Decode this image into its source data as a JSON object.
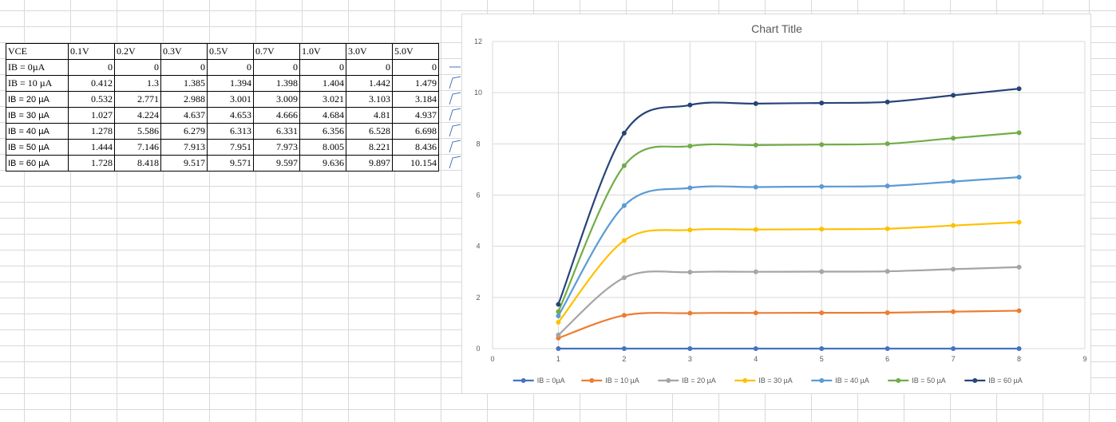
{
  "table": {
    "header": [
      "VCE",
      "0.1V",
      "0.2V",
      "0.3V",
      "0.5V",
      "0.7V",
      "1.0V",
      "3.0V",
      "5.0V"
    ],
    "rows": [
      {
        "label": "IB = 0µA",
        "values": [
          "0",
          "0",
          "0",
          "0",
          "0",
          "0",
          "0",
          "0"
        ]
      },
      {
        "label": "IB = 10 µA",
        "values": [
          "0.412",
          "1.3",
          "1.385",
          "1.394",
          "1.398",
          "1.404",
          "1.442",
          "1.479"
        ]
      },
      {
        "label": "IB = 20 µA",
        "values": [
          "0.532",
          "2.771",
          "2.988",
          "3.001",
          "3.009",
          "3.021",
          "3.103",
          "3.184"
        ]
      },
      {
        "label": "IB = 30 µA",
        "values": [
          "1.027",
          "4.224",
          "4.637",
          "4.653",
          "4.666",
          "4.684",
          "4.81",
          "4.937"
        ]
      },
      {
        "label": "IB = 40 µA",
        "values": [
          "1.278",
          "5.586",
          "6.279",
          "6.313",
          "6.331",
          "6.356",
          "6.528",
          "6.698"
        ]
      },
      {
        "label": "IB = 50 µA",
        "values": [
          "1.444",
          "7.146",
          "7.913",
          "7.951",
          "7.973",
          "8.005",
          "8.221",
          "8.436"
        ]
      },
      {
        "label": "IB = 60 µA",
        "values": [
          "1.728",
          "8.418",
          "9.517",
          "9.571",
          "9.597",
          "9.636",
          "9.897",
          "10.154"
        ]
      }
    ]
  },
  "chart_data": {
    "type": "line",
    "title": "Chart Title",
    "xlabel": "",
    "ylabel": "",
    "x": [
      1,
      2,
      3,
      4,
      5,
      6,
      7,
      8
    ],
    "xlim": [
      0,
      9
    ],
    "ylim": [
      0,
      12
    ],
    "x_ticks": [
      "0",
      "1",
      "2",
      "3",
      "4",
      "5",
      "6",
      "7",
      "8",
      "9"
    ],
    "y_ticks": [
      "0",
      "2",
      "4",
      "6",
      "8",
      "10",
      "12"
    ],
    "grid": true,
    "smooth": true,
    "legend_position": "bottom",
    "series": [
      {
        "name": "IB = 0µA",
        "color": "#4472C4",
        "values": [
          0,
          0,
          0,
          0,
          0,
          0,
          0,
          0
        ]
      },
      {
        "name": "IB = 10 µA",
        "color": "#ED7D31",
        "values": [
          0.412,
          1.3,
          1.385,
          1.394,
          1.398,
          1.404,
          1.442,
          1.479
        ]
      },
      {
        "name": "IB = 20 µA",
        "color": "#A5A5A5",
        "values": [
          0.532,
          2.771,
          2.988,
          3.001,
          3.009,
          3.021,
          3.103,
          3.184
        ]
      },
      {
        "name": "IB = 30 µA",
        "color": "#FFC000",
        "values": [
          1.027,
          4.224,
          4.637,
          4.653,
          4.666,
          4.684,
          4.81,
          4.937
        ]
      },
      {
        "name": "IB = 40 µA",
        "color": "#5B9BD5",
        "values": [
          1.278,
          5.586,
          6.279,
          6.313,
          6.331,
          6.356,
          6.528,
          6.698
        ]
      },
      {
        "name": "IB = 50 µA",
        "color": "#70AD47",
        "values": [
          1.444,
          7.146,
          7.913,
          7.951,
          7.973,
          8.005,
          8.221,
          8.436
        ]
      },
      {
        "name": "IB = 60 µA",
        "color": "#264478",
        "values": [
          1.728,
          8.418,
          9.517,
          9.571,
          9.597,
          9.636,
          9.897,
          10.154
        ]
      }
    ]
  }
}
